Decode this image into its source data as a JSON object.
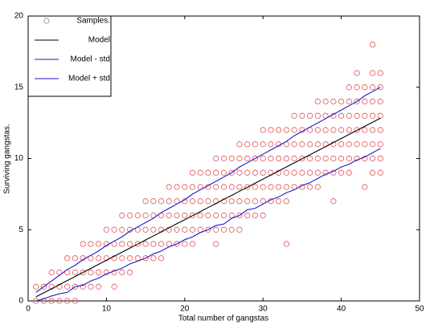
{
  "chart_data": {
    "type": "scatter",
    "xlabel": "Total number of gangstas",
    "ylabel": "Surviving gangstas.",
    "xlim": [
      0,
      50
    ],
    "xticks": [
      0,
      10,
      20,
      30,
      40,
      50
    ],
    "ylim": [
      0,
      20
    ],
    "yticks": [
      0,
      5,
      10,
      15,
      20
    ],
    "grid": false,
    "legend": "upper left",
    "series": [
      {
        "name": "Samples.",
        "type": "scatter",
        "color": "#e05050",
        "x": [
          1,
          1,
          2,
          2,
          3,
          3,
          3,
          4,
          4,
          4,
          5,
          5,
          5,
          5,
          6,
          6,
          6,
          6,
          7,
          7,
          7,
          7,
          8,
          8,
          8,
          8,
          9,
          9,
          9,
          9,
          10,
          10,
          10,
          10,
          11,
          11,
          11,
          11,
          11,
          12,
          12,
          12,
          12,
          12,
          13,
          13,
          13,
          13,
          13,
          14,
          14,
          14,
          14,
          15,
          15,
          15,
          15,
          15,
          16,
          16,
          16,
          16,
          16,
          17,
          17,
          17,
          17,
          17,
          18,
          18,
          18,
          18,
          18,
          19,
          19,
          19,
          19,
          19,
          20,
          20,
          20,
          20,
          20,
          21,
          21,
          21,
          21,
          21,
          21,
          22,
          22,
          22,
          22,
          22,
          23,
          23,
          23,
          23,
          23,
          24,
          24,
          24,
          24,
          24,
          24,
          24,
          25,
          25,
          25,
          25,
          25,
          25,
          26,
          26,
          26,
          26,
          26,
          26,
          27,
          27,
          27,
          27,
          27,
          27,
          27,
          28,
          28,
          28,
          28,
          28,
          28,
          29,
          29,
          29,
          29,
          29,
          29,
          30,
          30,
          30,
          30,
          30,
          30,
          30,
          31,
          31,
          31,
          31,
          31,
          31,
          32,
          32,
          32,
          32,
          32,
          32,
          33,
          33,
          33,
          33,
          33,
          33,
          33,
          34,
          34,
          34,
          34,
          34,
          34,
          35,
          35,
          35,
          35,
          35,
          35,
          36,
          36,
          36,
          36,
          36,
          36,
          37,
          37,
          37,
          37,
          37,
          37,
          37,
          38,
          38,
          38,
          38,
          38,
          38,
          39,
          39,
          39,
          39,
          39,
          39,
          39,
          40,
          40,
          40,
          40,
          40,
          40,
          41,
          41,
          41,
          41,
          41,
          41,
          41,
          42,
          42,
          42,
          42,
          42,
          42,
          42,
          43,
          43,
          43,
          43,
          43,
          43,
          43,
          44,
          44,
          44,
          44,
          44,
          44,
          44,
          44,
          44,
          45,
          45,
          45,
          45,
          45,
          45,
          45,
          45
        ],
        "y": [
          0,
          1,
          0,
          1,
          0,
          1,
          2,
          0,
          1,
          2,
          0,
          1,
          2,
          3,
          0,
          1,
          2,
          3,
          1,
          2,
          3,
          4,
          1,
          2,
          3,
          4,
          1,
          2,
          3,
          4,
          2,
          3,
          4,
          5,
          1,
          2,
          3,
          4,
          5,
          2,
          3,
          4,
          5,
          6,
          2,
          3,
          4,
          5,
          6,
          3,
          4,
          5,
          6,
          3,
          4,
          5,
          6,
          7,
          3,
          4,
          5,
          6,
          7,
          3,
          4,
          5,
          6,
          7,
          4,
          5,
          6,
          7,
          8,
          4,
          5,
          6,
          7,
          8,
          4,
          5,
          6,
          7,
          8,
          4,
          5,
          6,
          7,
          8,
          9,
          5,
          6,
          7,
          8,
          9,
          5,
          6,
          7,
          8,
          9,
          4,
          5,
          6,
          7,
          8,
          9,
          10,
          5,
          6,
          7,
          8,
          9,
          10,
          5,
          6,
          7,
          8,
          9,
          10,
          5,
          6,
          7,
          8,
          9,
          10,
          11,
          6,
          7,
          8,
          9,
          10,
          11,
          6,
          7,
          8,
          9,
          10,
          11,
          6,
          7,
          8,
          9,
          10,
          11,
          12,
          7,
          8,
          9,
          10,
          11,
          12,
          7,
          8,
          9,
          10,
          11,
          12,
          4,
          7,
          8,
          9,
          10,
          11,
          12,
          8,
          9,
          10,
          11,
          12,
          13,
          8,
          9,
          10,
          11,
          12,
          13,
          8,
          9,
          10,
          11,
          12,
          13,
          8,
          9,
          10,
          11,
          12,
          13,
          14,
          9,
          10,
          11,
          12,
          13,
          14,
          7,
          9,
          10,
          11,
          12,
          13,
          14,
          9,
          10,
          11,
          12,
          13,
          14,
          9,
          10,
          11,
          12,
          13,
          14,
          15,
          10,
          11,
          12,
          13,
          14,
          15,
          16,
          8,
          10,
          11,
          12,
          13,
          14,
          15,
          9,
          10,
          11,
          12,
          13,
          14,
          15,
          16,
          18,
          9,
          10,
          11,
          12,
          13,
          14,
          15,
          16
        ]
      },
      {
        "name": "Model",
        "type": "line",
        "color": "#000000",
        "x": [
          1,
          2,
          3,
          4,
          5,
          6,
          7,
          8,
          9,
          10,
          11,
          12,
          13,
          14,
          15,
          16,
          17,
          18,
          19,
          20,
          21,
          22,
          23,
          24,
          25,
          26,
          27,
          28,
          29,
          30,
          31,
          32,
          33,
          34,
          35,
          36,
          37,
          38,
          39,
          40,
          41,
          42,
          43,
          44,
          45
        ],
        "y": [
          0.29,
          0.57,
          0.86,
          1.14,
          1.43,
          1.71,
          2.0,
          2.28,
          2.57,
          2.85,
          3.14,
          3.42,
          3.71,
          3.99,
          4.28,
          4.56,
          4.85,
          5.13,
          5.42,
          5.7,
          5.99,
          6.27,
          6.56,
          6.84,
          7.13,
          7.41,
          7.7,
          7.98,
          8.27,
          8.55,
          8.84,
          9.12,
          9.41,
          9.69,
          9.98,
          10.26,
          10.55,
          10.83,
          11.12,
          11.4,
          11.69,
          11.97,
          12.26,
          12.54,
          12.83
        ]
      },
      {
        "name": "Model - std",
        "type": "line",
        "color": "#1a1acc",
        "x": [
          1,
          2,
          3,
          4,
          5,
          6,
          7,
          8,
          9,
          10,
          11,
          12,
          13,
          14,
          15,
          16,
          17,
          18,
          19,
          20,
          21,
          22,
          23,
          24,
          25,
          26,
          27,
          28,
          29,
          30,
          31,
          32,
          33,
          34,
          35,
          36,
          37,
          38,
          39,
          40,
          41,
          42,
          43,
          44,
          45
        ],
        "y": [
          0,
          0.15,
          0.35,
          0.5,
          0.6,
          1.0,
          1.1,
          1.4,
          1.6,
          1.9,
          2.1,
          2.3,
          2.6,
          2.8,
          3.0,
          3.3,
          3.5,
          3.8,
          4.0,
          4.3,
          4.5,
          4.8,
          5.0,
          5.3,
          5.4,
          5.8,
          6.0,
          6.4,
          6.5,
          6.8,
          7.1,
          7.3,
          7.6,
          7.8,
          8.1,
          8.3,
          8.6,
          8.9,
          9.1,
          9.4,
          9.6,
          9.9,
          10.1,
          10.4,
          10.7
        ]
      },
      {
        "name": "Model + std",
        "type": "line",
        "color": "#1a1acc",
        "x": [
          1,
          2,
          3,
          4,
          5,
          6,
          7,
          8,
          9,
          10,
          11,
          12,
          13,
          14,
          15,
          16,
          17,
          18,
          19,
          20,
          21,
          22,
          23,
          24,
          25,
          26,
          27,
          28,
          29,
          30,
          31,
          32,
          33,
          34,
          35,
          36,
          37,
          38,
          39,
          40,
          41,
          42,
          43,
          44,
          45
        ],
        "y": [
          0.6,
          1.0,
          1.4,
          1.8,
          2.2,
          2.5,
          2.9,
          3.2,
          3.5,
          3.9,
          4.2,
          4.5,
          4.9,
          5.2,
          5.5,
          5.8,
          6.2,
          6.5,
          6.8,
          7.1,
          7.5,
          7.8,
          8.1,
          8.4,
          8.7,
          9.0,
          9.4,
          9.7,
          10.0,
          10.3,
          10.6,
          10.9,
          11.2,
          11.6,
          11.9,
          12.2,
          12.5,
          12.8,
          13.1,
          13.4,
          13.7,
          14.0,
          14.4,
          14.7,
          15.0
        ]
      }
    ]
  }
}
